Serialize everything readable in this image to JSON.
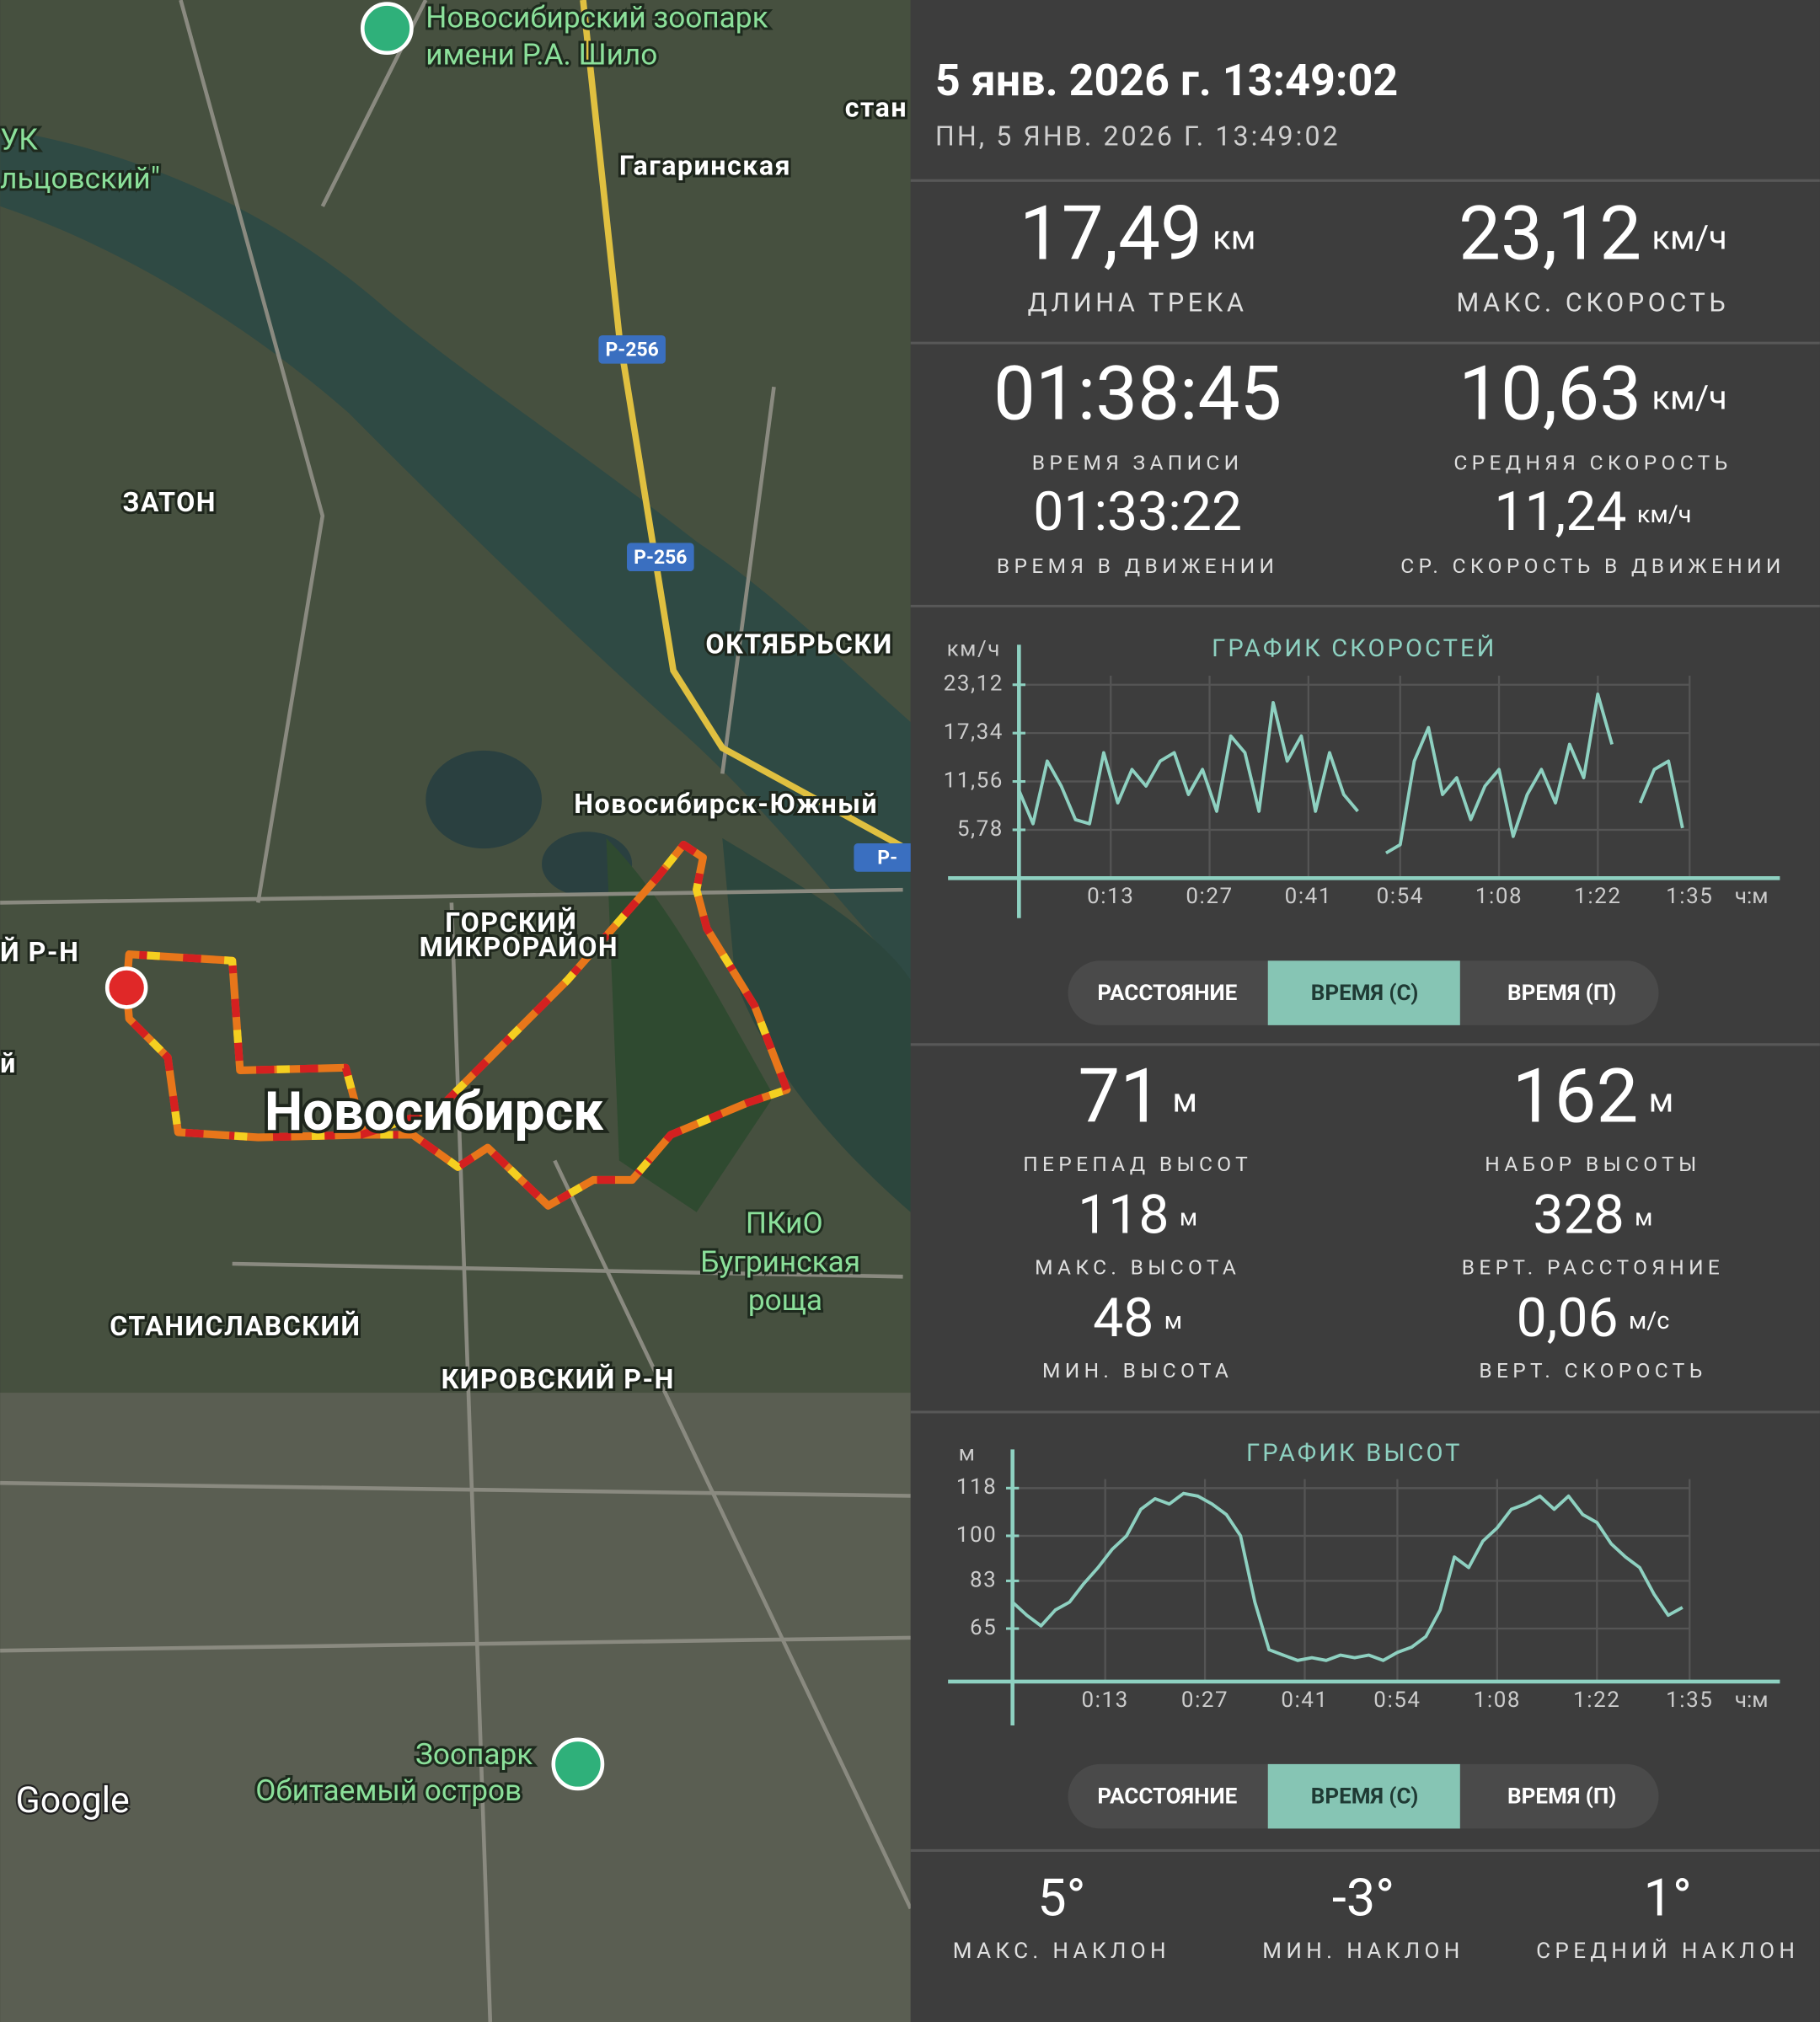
{
  "map": {
    "labels": [
      "Новосибирский зоопарк",
      "имени Р.А. Шило",
      "стан",
      "УК",
      "льцовский\"",
      "Гагаринская",
      "Р-256",
      "Р-256",
      "ЗАТОН",
      "ОКТЯБРЬСКИ",
      "Новосибирск-Южный",
      "Р-",
      "ГОРСКИЙ",
      "МИКРОРАЙОН",
      "Й Р-Н",
      "й",
      "Новосибирск",
      "ПКиО",
      "Бугринская",
      "роща",
      "СТАНИСЛАВСКИЙ",
      "КИРОВСКИЙ Р-Н",
      "Зоопарк",
      "Обитаемый остров",
      "Google"
    ]
  },
  "header": {
    "title": "5 янв. 2026 г. 13:49:02",
    "subtitle": "ПН, 5 ЯНВ. 2026 Г. 13:49:02"
  },
  "summary": [
    {
      "value": "17,49",
      "unit": "км",
      "label": "ДЛИНА ТРЕКА"
    },
    {
      "value": "23,12",
      "unit": "км/ч",
      "label": "МАКС. СКОРОСТЬ"
    },
    {
      "value": "01:38:45",
      "label": "ВРЕМЯ ЗАПИСИ"
    },
    {
      "value": "10,63",
      "unit": "км/ч",
      "label": "СРЕДНЯЯ СКОРОСТЬ"
    },
    {
      "value": "01:33:22",
      "label": "ВРЕМЯ В ДВИЖЕНИИ"
    },
    {
      "value": "11,24",
      "unit": "км/ч",
      "label": "СР. СКОРОСТЬ В ДВИЖЕНИИ"
    }
  ],
  "elevation": [
    {
      "value": "71",
      "unit": "м",
      "label": "ПЕРЕПАД ВЫСОТ"
    },
    {
      "value": "162",
      "unit": "м",
      "label": "НАБОР ВЫСОТЫ"
    },
    {
      "value": "118",
      "unit": "м",
      "label": "МАКС. ВЫСОТА"
    },
    {
      "value": "328",
      "unit": "м",
      "label": "ВЕРТ. РАССТОЯНИЕ"
    },
    {
      "value": "48",
      "unit": "м",
      "label": "МИН. ВЫСОТА"
    },
    {
      "value": "0,06",
      "unit": "м/с",
      "label": "ВЕРТ. СКОРОСТЬ"
    }
  ],
  "slope": [
    {
      "value": "5°",
      "label": "МАКС. НАКЛОН"
    },
    {
      "value": "-3°",
      "label": "МИН. НАКЛОН"
    },
    {
      "value": "1°",
      "label": "СРЕДНИЙ НАКЛОН"
    }
  ],
  "chart_data": [
    {
      "type": "line",
      "title": "ГРАФИК СКОРОСТЕЙ",
      "y_unit": "км/ч",
      "x_unit": "ч:м",
      "color": "#8ed1c1",
      "grid": true,
      "x": [
        0,
        2,
        4,
        6,
        8,
        10,
        12,
        14,
        16,
        18,
        20,
        22,
        24,
        26,
        28,
        30,
        32,
        34,
        36,
        38,
        40,
        42,
        44,
        46,
        48,
        50,
        52,
        54,
        56,
        58,
        60,
        62,
        64,
        66,
        68,
        70,
        72,
        74,
        76,
        78,
        80,
        82,
        84,
        86,
        88,
        90,
        92,
        94
      ],
      "values": [
        10.5,
        6.5,
        14,
        11,
        7,
        6.5,
        15,
        9,
        13,
        11,
        14,
        15,
        10,
        13,
        8,
        17,
        15,
        8,
        21,
        14,
        17,
        8,
        15,
        10,
        8,
        null,
        3,
        4,
        14,
        18,
        10,
        12,
        7,
        11,
        13,
        5,
        10,
        13,
        9,
        16,
        12,
        22,
        16,
        null,
        9,
        13,
        14,
        6
      ],
      "xlim": [
        0,
        95
      ],
      "ylim": [
        0,
        23.12
      ],
      "xticks": [
        {
          "value": 13,
          "label": "0:13"
        },
        {
          "value": 27,
          "label": "0:27"
        },
        {
          "value": 41,
          "label": "0:41"
        },
        {
          "value": 54,
          "label": "0:54"
        },
        {
          "value": 68,
          "label": "1:08"
        },
        {
          "value": 82,
          "label": "1:22"
        },
        {
          "value": 95,
          "label": "1:35"
        }
      ],
      "yticks": [
        {
          "value": 5.78,
          "label": "5,78"
        },
        {
          "value": 11.56,
          "label": "11,56"
        },
        {
          "value": 17.34,
          "label": "17,34"
        },
        {
          "value": 23.12,
          "label": "23,12"
        }
      ],
      "modes": [
        "РАССТОЯНИЕ",
        "ВРЕМЯ (С)",
        "ВРЕМЯ (П)"
      ],
      "selected_mode": "ВРЕМЯ (С)"
    },
    {
      "type": "line",
      "title": "ГРАФИК ВЫСОТ",
      "y_unit": "м",
      "x_unit": "ч:м",
      "color": "#8ed1c1",
      "grid": true,
      "x": [
        0,
        2,
        4,
        6,
        8,
        10,
        12,
        14,
        16,
        18,
        20,
        22,
        24,
        26,
        28,
        30,
        32,
        34,
        36,
        38,
        40,
        42,
        44,
        46,
        48,
        50,
        52,
        54,
        56,
        58,
        60,
        62,
        64,
        66,
        68,
        70,
        72,
        74,
        76,
        78,
        80,
        82,
        84,
        86,
        88,
        90,
        92,
        94
      ],
      "values": [
        75,
        70,
        66,
        72,
        75,
        82,
        88,
        95,
        100,
        110,
        114,
        112,
        116,
        115,
        112,
        108,
        100,
        75,
        57,
        55,
        53,
        54,
        53,
        55,
        54,
        55,
        53,
        56,
        58,
        62,
        72,
        92,
        88,
        98,
        103,
        110,
        112,
        115,
        110,
        115,
        108,
        105,
        97,
        92,
        88,
        78,
        70,
        73
      ],
      "xlim": [
        0,
        95
      ],
      "ylim": [
        45,
        118
      ],
      "xticks": [
        {
          "value": 13,
          "label": "0:13"
        },
        {
          "value": 27,
          "label": "0:27"
        },
        {
          "value": 41,
          "label": "0:41"
        },
        {
          "value": 54,
          "label": "0:54"
        },
        {
          "value": 68,
          "label": "1:08"
        },
        {
          "value": 82,
          "label": "1:22"
        },
        {
          "value": 95,
          "label": "1:35"
        }
      ],
      "yticks": [
        65,
        83,
        100,
        118
      ],
      "modes": [
        "РАССТОЯНИЕ",
        "ВРЕМЯ (С)",
        "ВРЕМЯ (П)"
      ],
      "selected_mode": "ВРЕМЯ (С)"
    }
  ]
}
